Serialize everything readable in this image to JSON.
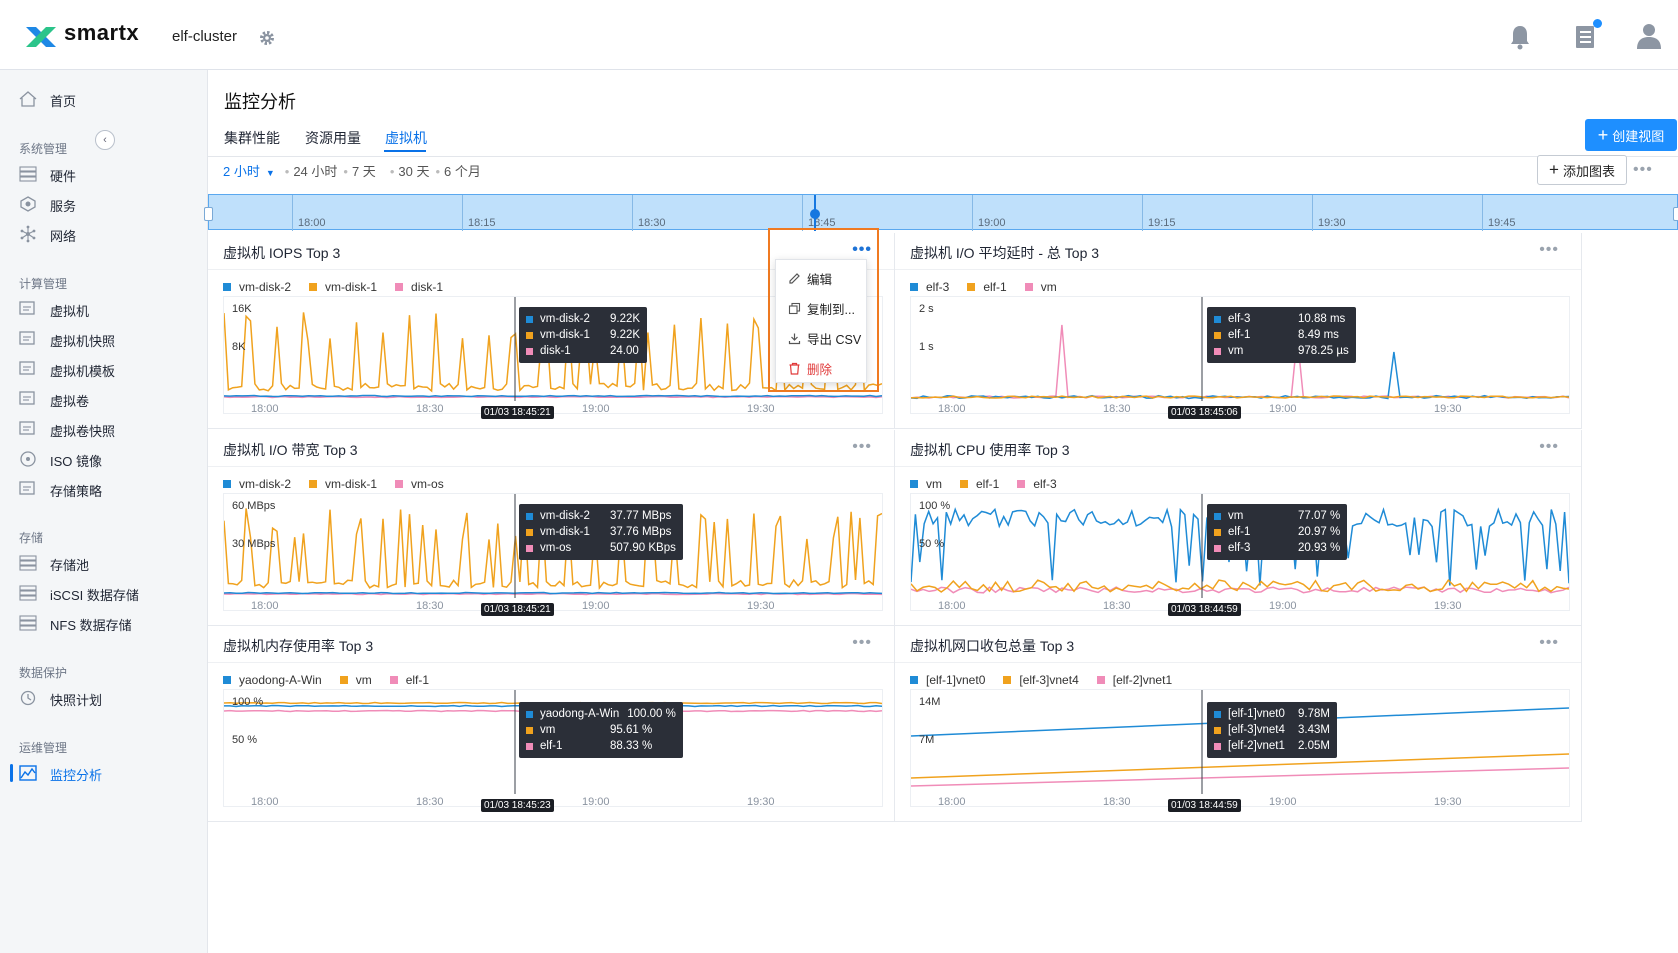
{
  "header": {
    "brand": "smartx",
    "cluster_name": "elf-cluster"
  },
  "sidebar": {
    "items": [
      {
        "label": "首页",
        "icon": "home-icon"
      },
      {
        "section": "系统管理"
      },
      {
        "label": "硬件",
        "icon": "hardware-icon"
      },
      {
        "label": "服务",
        "icon": "service-icon"
      },
      {
        "label": "网络",
        "icon": "network-icon"
      },
      {
        "section": "计算管理"
      },
      {
        "label": "虚拟机",
        "icon": "vm-icon"
      },
      {
        "label": "虚拟机快照",
        "icon": "vm-snapshot-icon"
      },
      {
        "label": "虚拟机模板",
        "icon": "vm-template-icon"
      },
      {
        "label": "虚拟卷",
        "icon": "volume-icon"
      },
      {
        "label": "虚拟卷快照",
        "icon": "volume-snapshot-icon"
      },
      {
        "label": "ISO 镜像",
        "icon": "iso-icon"
      },
      {
        "label": "存储策略",
        "icon": "storage-policy-icon"
      },
      {
        "section": "存储"
      },
      {
        "label": "存储池",
        "icon": "storage-pool-icon"
      },
      {
        "label": "iSCSI 数据存储",
        "icon": "iscsi-icon"
      },
      {
        "label": "NFS 数据存储",
        "icon": "nfs-icon"
      },
      {
        "section": "数据保护"
      },
      {
        "label": "快照计划",
        "icon": "snapshot-plan-icon"
      },
      {
        "section": "运维管理"
      },
      {
        "label": "监控分析",
        "icon": "monitor-icon",
        "active": true
      }
    ]
  },
  "page": {
    "title": "监控分析",
    "tabs": [
      "集群性能",
      "资源用量",
      "虚拟机"
    ],
    "active_tab": "虚拟机",
    "create_view_label": "创建视图",
    "add_chart_label": "添加图表"
  },
  "time_ranges": {
    "selected": "2 小时",
    "options": [
      "24 小时",
      "7 天",
      "30 天",
      "6 个月"
    ]
  },
  "timeline": {
    "labels": [
      "18:00",
      "18:15",
      "18:30",
      "18:45",
      "19:00",
      "19:15",
      "19:30",
      "19:45"
    ]
  },
  "colors": {
    "blue": "#1f8bd6",
    "orange": "#f0a21e",
    "pink": "#f08cb8",
    "accent": "#1e8fff",
    "danger": "#e03a3a"
  },
  "context_menu": {
    "items": [
      {
        "label": "编辑",
        "icon": "edit-icon"
      },
      {
        "label": "复制到...",
        "icon": "copy-icon"
      },
      {
        "label": "导出 CSV",
        "icon": "download-icon"
      },
      {
        "label": "删除",
        "icon": "delete-icon",
        "danger": true
      }
    ]
  },
  "panels": [
    {
      "title": "虚拟机 IOPS Top 3",
      "legend": [
        "vm-disk-2",
        "vm-disk-1",
        "disk-1"
      ],
      "yticks": [
        "16K",
        "8K"
      ],
      "xticks": [
        "18:00",
        "18:30",
        "19:00",
        "19:30"
      ],
      "stamp": "01/03 18:45:21",
      "tooltip": [
        [
          "vm-disk-2",
          "9.22K"
        ],
        [
          "vm-disk-1",
          "9.22K"
        ],
        [
          "disk-1",
          "24.00"
        ]
      ]
    },
    {
      "title": "虚拟机 I/O 平均延时 - 总 Top 3",
      "legend": [
        "elf-3",
        "elf-1",
        "vm"
      ],
      "yticks": [
        "2 s",
        "1 s"
      ],
      "xticks": [
        "18:00",
        "18:30",
        "19:00",
        "19:30"
      ],
      "stamp": "01/03 18:45:06",
      "tooltip": [
        [
          "elf-3",
          "10.88 ms"
        ],
        [
          "elf-1",
          "8.49 ms"
        ],
        [
          "vm",
          "978.25 µs"
        ]
      ]
    },
    {
      "title": "虚拟机 I/O 带宽 Top 3",
      "legend": [
        "vm-disk-2",
        "vm-disk-1",
        "vm-os"
      ],
      "yticks": [
        "60 MBps",
        "30 MBps"
      ],
      "xticks": [
        "18:00",
        "18:30",
        "19:00",
        "19:30"
      ],
      "stamp": "01/03 18:45:21",
      "tooltip": [
        [
          "vm-disk-2",
          "37.77 MBps"
        ],
        [
          "vm-disk-1",
          "37.76 MBps"
        ],
        [
          "vm-os",
          "507.90 KBps"
        ]
      ]
    },
    {
      "title": "虚拟机 CPU 使用率 Top 3",
      "legend": [
        "vm",
        "elf-1",
        "elf-3"
      ],
      "yticks": [
        "100 %",
        "50 %"
      ],
      "xticks": [
        "18:00",
        "18:30",
        "19:00",
        "19:30"
      ],
      "stamp": "01/03 18:44:59",
      "tooltip": [
        [
          "vm",
          "77.07 %"
        ],
        [
          "elf-1",
          "20.97 %"
        ],
        [
          "elf-3",
          "20.93 %"
        ]
      ]
    },
    {
      "title": "虚拟机内存使用率 Top 3",
      "legend": [
        "yaodong-A-Win",
        "vm",
        "elf-1"
      ],
      "yticks": [
        "100 %",
        "50 %"
      ],
      "xticks": [
        "18:00",
        "18:30",
        "19:00",
        "19:30"
      ],
      "stamp": "01/03 18:45:23",
      "tooltip": [
        [
          "yaodong-A-Win",
          "100.00 %"
        ],
        [
          "vm",
          "95.61 %"
        ],
        [
          "elf-1",
          "88.33 %"
        ]
      ]
    },
    {
      "title": "虚拟机网口收包总量 Top 3",
      "legend": [
        "[elf-1]vnet0",
        "[elf-3]vnet4",
        "[elf-2]vnet1"
      ],
      "yticks": [
        "14M",
        "7M"
      ],
      "xticks": [
        "18:00",
        "18:30",
        "19:00",
        "19:30"
      ],
      "stamp": "01/03 18:44:59",
      "tooltip": [
        [
          "[elf-1]vnet0",
          "9.78M"
        ],
        [
          "[elf-3]vnet4",
          "3.43M"
        ],
        [
          "[elf-2]vnet1",
          "2.05M"
        ]
      ]
    }
  ]
}
